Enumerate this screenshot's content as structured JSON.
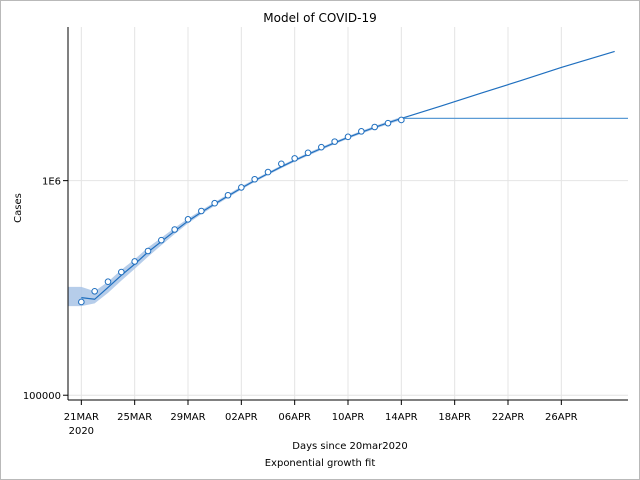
{
  "chart_data": {
    "type": "line",
    "title": "Model of COVID-19",
    "xlabel": "Days since 20mar2020",
    "ylabel": "Cases",
    "footnote": "Exponential growth fit",
    "yscale": "log",
    "ylim": [
      95000,
      5200000
    ],
    "xlim": [
      "2020-03-20",
      "2020-05-01"
    ],
    "x_ticks": [
      {
        "date": "2020-03-21",
        "label": "21MAR",
        "sublabel": "2020"
      },
      {
        "date": "2020-03-25",
        "label": "25MAR"
      },
      {
        "date": "2020-03-29",
        "label": "29MAR"
      },
      {
        "date": "2020-04-02",
        "label": "02APR"
      },
      {
        "date": "2020-04-06",
        "label": "06APR"
      },
      {
        "date": "2020-04-10",
        "label": "10APR"
      },
      {
        "date": "2020-04-14",
        "label": "14APR"
      },
      {
        "date": "2020-04-18",
        "label": "18APR"
      },
      {
        "date": "2020-04-22",
        "label": "22APR"
      },
      {
        "date": "2020-04-26",
        "label": "26APR"
      }
    ],
    "y_ticks": [
      {
        "value": 100000,
        "label": "100000"
      },
      {
        "value": 1000000,
        "label": "1E6"
      }
    ],
    "grid": true,
    "colors": {
      "line": "#1f6fbf",
      "band": "#a9c4e6",
      "marker": "#1f6fbf"
    },
    "observed": {
      "x": [
        "2020-03-21",
        "2020-03-22",
        "2020-03-23",
        "2020-03-24",
        "2020-03-25",
        "2020-03-26",
        "2020-03-27",
        "2020-03-28",
        "2020-03-29",
        "2020-03-30",
        "2020-03-31",
        "2020-04-01",
        "2020-04-02",
        "2020-04-03",
        "2020-04-04",
        "2020-04-05",
        "2020-04-06",
        "2020-04-07",
        "2020-04-08",
        "2020-04-09",
        "2020-04-10",
        "2020-04-11",
        "2020-04-12",
        "2020-04-13",
        "2020-04-14"
      ],
      "y": [
        272000,
        305000,
        338000,
        375000,
        420000,
        470000,
        528000,
        592000,
        660000,
        722000,
        785000,
        855000,
        930000,
        1015000,
        1096000,
        1198000,
        1270000,
        1348000,
        1432000,
        1520000,
        1600000,
        1697000,
        1778000,
        1853000,
        1918000
      ]
    },
    "fit": {
      "x": [
        "2020-03-21",
        "2020-03-22",
        "2020-03-23",
        "2020-03-24",
        "2020-03-25",
        "2020-03-26",
        "2020-03-27",
        "2020-03-28",
        "2020-03-29",
        "2020-03-30",
        "2020-03-31",
        "2020-04-01",
        "2020-04-02",
        "2020-04-03",
        "2020-04-04",
        "2020-04-05",
        "2020-04-06",
        "2020-04-07",
        "2020-04-08",
        "2020-04-09",
        "2020-04-10",
        "2020-04-11",
        "2020-04-12",
        "2020-04-13",
        "2020-04-14",
        "2020-04-17",
        "2020-04-20",
        "2020-04-23",
        "2020-04-26",
        "2020-04-30"
      ],
      "y": [
        285000,
        280000,
        318000,
        362000,
        408000,
        465000,
        520000,
        582000,
        648000,
        712000,
        778000,
        848000,
        923000,
        1000000,
        1078000,
        1160000,
        1243000,
        1327000,
        1412000,
        1500000,
        1590000,
        1680000,
        1770000,
        1860000,
        1950000,
        2230000,
        2560000,
        2930000,
        3370000,
        4000000
      ]
    },
    "band": {
      "x": [
        "2020-03-20",
        "2020-03-21",
        "2020-03-22",
        "2020-03-23",
        "2020-03-24",
        "2020-03-25",
        "2020-03-26",
        "2020-03-27",
        "2020-03-28",
        "2020-03-29",
        "2020-03-30",
        "2020-03-31",
        "2020-04-01",
        "2020-04-02",
        "2020-04-03",
        "2020-04-04",
        "2020-04-05",
        "2020-04-06",
        "2020-04-07",
        "2020-04-08",
        "2020-04-09",
        "2020-04-10",
        "2020-04-11",
        "2020-04-12",
        "2020-04-13",
        "2020-04-14"
      ],
      "lower": [
        260000,
        260000,
        268000,
        300000,
        342000,
        388000,
        442000,
        500000,
        564000,
        632000,
        697000,
        763000,
        833000,
        908000,
        985000,
        1062000,
        1142000,
        1224000,
        1307000,
        1390000,
        1478000,
        1567000,
        1655000,
        1743000,
        1830000,
        1918000
      ],
      "upper": [
        320000,
        320000,
        305000,
        338000,
        384000,
        430000,
        488000,
        542000,
        602000,
        666000,
        728000,
        794000,
        864000,
        940000,
        1016000,
        1094000,
        1178000,
        1262000,
        1348000,
        1434000,
        1522000,
        1612000,
        1705000,
        1797000,
        1890000,
        1982000
      ]
    },
    "projection": {
      "x": [
        "2020-04-14",
        "2020-05-01"
      ],
      "y": [
        1950000,
        1950000
      ]
    }
  }
}
